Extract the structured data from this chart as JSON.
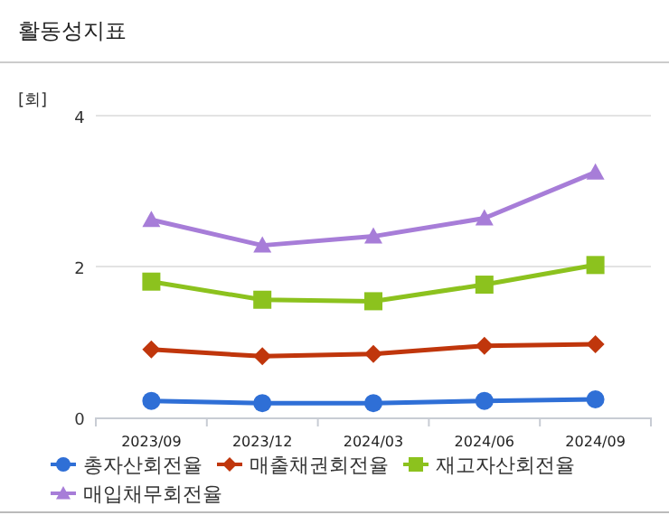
{
  "chart_data": {
    "type": "line",
    "title": "활동성지표",
    "ylabel": "[회]",
    "categories": [
      "2023/09",
      "2023/12",
      "2024/03",
      "2024/06",
      "2024/09"
    ],
    "series": [
      {
        "name": "총자산회전율",
        "color": "#2f6fd6",
        "marker": "circle",
        "values": [
          0.22,
          0.19,
          0.19,
          0.22,
          0.24
        ]
      },
      {
        "name": "매출채권회전율",
        "color": "#c0360c",
        "marker": "diamond",
        "values": [
          0.9,
          0.81,
          0.84,
          0.95,
          0.97
        ]
      },
      {
        "name": "재고자산회전율",
        "color": "#8cc21e",
        "marker": "square",
        "values": [
          1.8,
          1.56,
          1.54,
          1.76,
          2.02
        ]
      },
      {
        "name": "매입채무회전율",
        "color": "#a77dd8",
        "marker": "triangle",
        "values": [
          2.62,
          2.28,
          2.4,
          2.64,
          3.25
        ]
      }
    ],
    "ylim": [
      0,
      4
    ],
    "yticks": [
      0,
      2,
      4
    ],
    "grid": "y",
    "legend": "bottom",
    "line_style": "solid"
  }
}
